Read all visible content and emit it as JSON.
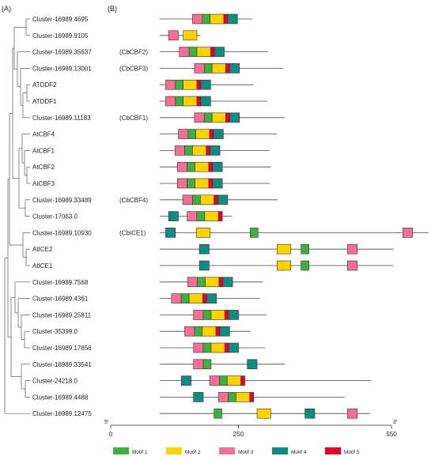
{
  "panels": {
    "a": "(A)",
    "b": "(B)"
  },
  "axis": {
    "start_label": "5'",
    "end_label": "3'",
    "ticks": [
      0,
      250,
      550
    ],
    "max": 550
  },
  "motifs": [
    {
      "id": 1,
      "name": "Motif 1",
      "color": "#3fb040",
      "length": 16
    },
    {
      "id": 2,
      "name": "Motif 2",
      "color": "#ffd200",
      "length": 28
    },
    {
      "id": 3,
      "name": "Motif 3",
      "color": "#f56e95",
      "length": 20
    },
    {
      "id": 4,
      "name": "Motif 4",
      "color": "#138a82",
      "length": 20
    },
    {
      "id": 5,
      "name": "Motif 5",
      "color": "#e8002a",
      "length": 8
    }
  ],
  "genes": [
    {
      "name": "Cluster-16989.4695",
      "alias": "",
      "length": 190,
      "motifs": [
        {
          "m": 3,
          "s": 67
        },
        {
          "m": 1,
          "s": 87
        },
        {
          "m": 2,
          "s": 103
        },
        {
          "m": 5,
          "s": 131
        },
        {
          "m": 4,
          "s": 139
        }
      ]
    },
    {
      "name": "Cluster-16989.9105",
      "alias": "",
      "length": 83,
      "motifs": [
        {
          "m": 3,
          "s": 18
        },
        {
          "m": 2,
          "s": 48
        }
      ]
    },
    {
      "name": "Cluster-16989.35637",
      "alias": "(CbCBF2)",
      "length": 222,
      "motifs": [
        {
          "m": 3,
          "s": 40
        },
        {
          "m": 1,
          "s": 60
        },
        {
          "m": 2,
          "s": 76
        },
        {
          "m": 5,
          "s": 104
        },
        {
          "m": 4,
          "s": 112
        }
      ]
    },
    {
      "name": "Cluster-16989.13001",
      "alias": "(CbCBF3)",
      "length": 253,
      "motifs": [
        {
          "m": 3,
          "s": 71
        },
        {
          "m": 1,
          "s": 91
        },
        {
          "m": 2,
          "s": 107
        },
        {
          "m": 5,
          "s": 135
        },
        {
          "m": 4,
          "s": 143
        }
      ]
    },
    {
      "name": "ATDDF2",
      "alias": "",
      "length": 192,
      "motifs": [
        {
          "m": 3,
          "s": 12
        },
        {
          "m": 1,
          "s": 32
        },
        {
          "m": 2,
          "s": 48
        },
        {
          "m": 5,
          "s": 76
        },
        {
          "m": 4,
          "s": 84
        }
      ]
    },
    {
      "name": "ATDDF1",
      "alias": "",
      "length": 220,
      "motifs": [
        {
          "m": 3,
          "s": 12
        },
        {
          "m": 1,
          "s": 32
        },
        {
          "m": 2,
          "s": 48
        },
        {
          "m": 5,
          "s": 76
        },
        {
          "m": 4,
          "s": 84
        }
      ]
    },
    {
      "name": "Cluster-16989.11183",
      "alias": "(CbCBF1)",
      "length": 256,
      "motifs": [
        {
          "m": 3,
          "s": 71
        },
        {
          "m": 1,
          "s": 91
        },
        {
          "m": 2,
          "s": 107
        },
        {
          "m": 5,
          "s": 135
        },
        {
          "m": 4,
          "s": 143
        }
      ]
    },
    {
      "name": "AtCBF4",
      "alias": "",
      "length": 240,
      "motifs": [
        {
          "m": 3,
          "s": 38
        },
        {
          "m": 1,
          "s": 58
        },
        {
          "m": 2,
          "s": 74
        },
        {
          "m": 5,
          "s": 102
        },
        {
          "m": 4,
          "s": 110
        }
      ]
    },
    {
      "name": "AtCBF1",
      "alias": "",
      "length": 224,
      "motifs": [
        {
          "m": 3,
          "s": 31
        },
        {
          "m": 1,
          "s": 51
        },
        {
          "m": 2,
          "s": 67
        },
        {
          "m": 5,
          "s": 95
        },
        {
          "m": 4,
          "s": 103
        }
      ]
    },
    {
      "name": "AtCBF2",
      "alias": "",
      "length": 227,
      "motifs": [
        {
          "m": 3,
          "s": 36
        },
        {
          "m": 1,
          "s": 56
        },
        {
          "m": 2,
          "s": 72
        },
        {
          "m": 5,
          "s": 100
        },
        {
          "m": 4,
          "s": 108
        }
      ]
    },
    {
      "name": "AtCBF3",
      "alias": "",
      "length": 225,
      "motifs": [
        {
          "m": 3,
          "s": 36
        },
        {
          "m": 1,
          "s": 56
        },
        {
          "m": 2,
          "s": 72
        },
        {
          "m": 5,
          "s": 100
        },
        {
          "m": 4,
          "s": 108
        }
      ]
    },
    {
      "name": "Cluster-16989.33489",
      "alias": "(CbCBF4)",
      "length": 241,
      "motifs": [
        {
          "m": 3,
          "s": 47
        },
        {
          "m": 1,
          "s": 67
        },
        {
          "m": 2,
          "s": 83
        },
        {
          "m": 5,
          "s": 111
        },
        {
          "m": 4,
          "s": 119
        }
      ]
    },
    {
      "name": "Cluster-17063.0",
      "alias": "",
      "length": 148,
      "motifs": [
        {
          "m": 4,
          "s": 18
        },
        {
          "m": 3,
          "s": 56
        },
        {
          "m": 1,
          "s": 76
        },
        {
          "m": 2,
          "s": 92
        },
        {
          "m": 5,
          "s": 120
        }
      ]
    },
    {
      "name": "Cluster-16989.10930",
      "alias": "(CbICE1)",
      "length": 550,
      "motifs": [
        {
          "m": 4,
          "s": 12
        },
        {
          "m": 2,
          "s": 75
        },
        {
          "m": 1,
          "s": 185
        },
        {
          "m": 3,
          "s": 497
        }
      ]
    },
    {
      "name": "AtICE2",
      "alias": "",
      "length": 478,
      "motifs": [
        {
          "m": 4,
          "s": 81
        },
        {
          "m": 2,
          "s": 240
        },
        {
          "m": 1,
          "s": 289
        },
        {
          "m": 3,
          "s": 384
        }
      ]
    },
    {
      "name": "AtICE1",
      "alias": "",
      "length": 478,
      "motifs": [
        {
          "m": 4,
          "s": 81
        },
        {
          "m": 2,
          "s": 240
        },
        {
          "m": 1,
          "s": 289
        },
        {
          "m": 3,
          "s": 384
        }
      ]
    },
    {
      "name": "Cluster-16989.7568",
      "alias": "",
      "length": 211,
      "motifs": [
        {
          "m": 3,
          "s": 57
        },
        {
          "m": 1,
          "s": 77
        },
        {
          "m": 2,
          "s": 93
        },
        {
          "m": 5,
          "s": 121
        },
        {
          "m": 4,
          "s": 129
        }
      ]
    },
    {
      "name": "Cluster-16989.4361",
      "alias": "",
      "length": 205,
      "motifs": [
        {
          "m": 3,
          "s": 24
        },
        {
          "m": 1,
          "s": 44
        },
        {
          "m": 2,
          "s": 60
        },
        {
          "m": 5,
          "s": 88
        },
        {
          "m": 4,
          "s": 96
        }
      ]
    },
    {
      "name": "Cluster-16989.25811",
      "alias": "",
      "length": 218,
      "motifs": [
        {
          "m": 3,
          "s": 69
        },
        {
          "m": 1,
          "s": 89
        },
        {
          "m": 2,
          "s": 105
        },
        {
          "m": 5,
          "s": 133
        },
        {
          "m": 4,
          "s": 141
        }
      ]
    },
    {
      "name": "Cluster-35399.0",
      "alias": "",
      "length": 185,
      "motifs": [
        {
          "m": 3,
          "s": 51
        },
        {
          "m": 1,
          "s": 71
        },
        {
          "m": 2,
          "s": 87
        },
        {
          "m": 5,
          "s": 115
        },
        {
          "m": 4,
          "s": 123
        }
      ]
    },
    {
      "name": "Cluster-16989.17856",
      "alias": "",
      "length": 216,
      "motifs": [
        {
          "m": 3,
          "s": 69
        },
        {
          "m": 1,
          "s": 89
        },
        {
          "m": 2,
          "s": 105
        },
        {
          "m": 5,
          "s": 133
        },
        {
          "m": 4,
          "s": 141
        }
      ]
    },
    {
      "name": "Cluster-16989.33541",
      "alias": "",
      "length": 256,
      "motifs": [
        {
          "m": 3,
          "s": 69
        },
        {
          "m": 1,
          "s": 89
        },
        {
          "m": 4,
          "s": 179
        }
      ]
    },
    {
      "name": "Cluster-24218.0",
      "alias": "",
      "length": 432,
      "motifs": [
        {
          "m": 4,
          "s": 44
        },
        {
          "m": 3,
          "s": 102
        },
        {
          "m": 1,
          "s": 122
        },
        {
          "m": 2,
          "s": 138
        },
        {
          "m": 5,
          "s": 166
        }
      ]
    },
    {
      "name": "Cluster-16989.4488",
      "alias": "",
      "length": 378,
      "motifs": [
        {
          "m": 4,
          "s": 69
        },
        {
          "m": 3,
          "s": 120
        },
        {
          "m": 1,
          "s": 140
        },
        {
          "m": 2,
          "s": 156
        },
        {
          "m": 5,
          "s": 184
        }
      ]
    },
    {
      "name": "Cluster-16989.12475",
      "alias": "",
      "length": 430,
      "motifs": [
        {
          "m": 1,
          "s": 111
        },
        {
          "m": 2,
          "s": 199
        },
        {
          "m": 4,
          "s": 297
        },
        {
          "m": 3,
          "s": 384
        }
      ]
    }
  ]
}
